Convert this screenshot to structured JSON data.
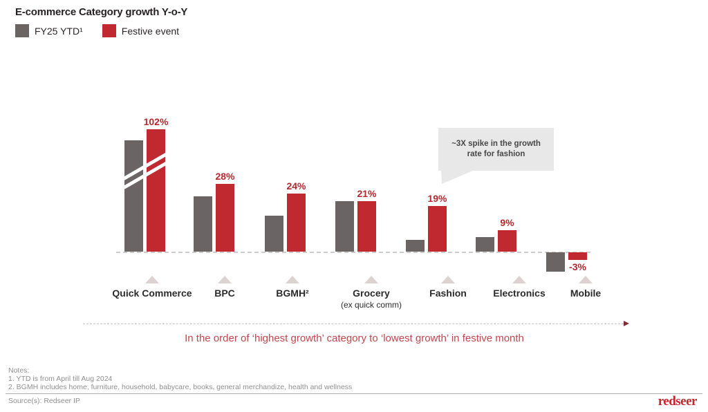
{
  "header": {
    "title": "E-commerce Category growth Y-o-Y"
  },
  "legend": [
    {
      "label": "FY25 YTD¹",
      "color": "#6a6465"
    },
    {
      "label": "Festive event",
      "color": "#c0292f"
    }
  ],
  "chart_data": {
    "type": "bar",
    "categories": [
      "Quick Commerce",
      "BPC",
      "BGMH²",
      "Grocery",
      "Fashion",
      "Electronics",
      "Mobile"
    ],
    "category_sublabels": [
      "",
      "",
      "",
      "(ex quick comm)",
      "",
      "",
      ""
    ],
    "series": [
      {
        "name": "FY25 YTD¹",
        "color": "#6a6465",
        "values": [
          75,
          23,
          15,
          21,
          5,
          6,
          -8
        ],
        "values_estimated": true
      },
      {
        "name": "Festive event",
        "color": "#c0292f",
        "values": [
          102,
          28,
          24,
          21,
          19,
          9,
          -3
        ]
      }
    ],
    "value_labels": [
      "102%",
      "28%",
      "24%",
      "21%",
      "19%",
      "9%",
      "-3%"
    ],
    "axis_break_category": "Quick Commerce",
    "ylabel": "",
    "xlabel": "",
    "grid": false,
    "legend_position": "top-left",
    "annotation": "~3X spike in the growth rate for fashion",
    "order_note": "In the order of ‘highest growth’ category to ‘lowest growth’ in festive month"
  },
  "footer": {
    "notes_title": "Notes:",
    "notes": [
      "1.  YTD is from April till Aug 2024",
      "2. BGMH includes home, furniture, household, babycare, books, general merchandize, health and wellness"
    ],
    "source": "Source(s): Redseer IP",
    "logo": "redseer"
  }
}
